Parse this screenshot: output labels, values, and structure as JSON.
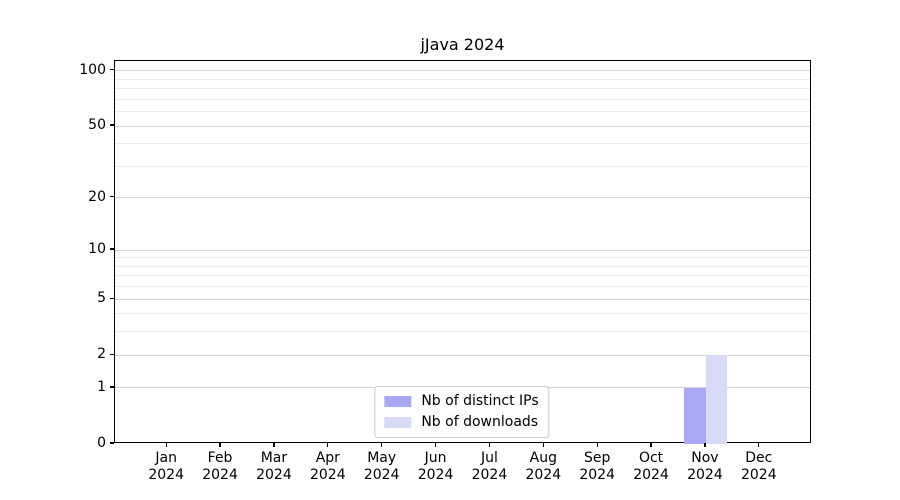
{
  "chart_data": {
    "type": "bar",
    "title": "jJava 2024",
    "categories": [
      "Jan 2024",
      "Feb 2024",
      "Mar 2024",
      "Apr 2024",
      "May 2024",
      "Jun 2024",
      "Jul 2024",
      "Aug 2024",
      "Sep 2024",
      "Oct 2024",
      "Nov 2024",
      "Dec 2024"
    ],
    "series": [
      {
        "name": "Nb of distinct IPs",
        "color": "#a8a8f4",
        "values": [
          0,
          0,
          0,
          0,
          0,
          0,
          0,
          0,
          0,
          0,
          1,
          0
        ]
      },
      {
        "name": "Nb of downloads",
        "color": "#d9d9f8",
        "values": [
          0,
          0,
          0,
          0,
          0,
          0,
          0,
          0,
          0,
          0,
          2,
          0
        ]
      }
    ],
    "yscale": "log1p",
    "ylim": [
      0,
      113
    ],
    "yticks": [
      0,
      1,
      2,
      5,
      10,
      20,
      50,
      100
    ],
    "yticks_minor": [
      3,
      4,
      6,
      7,
      8,
      9,
      30,
      40,
      60,
      70,
      80,
      90
    ],
    "xlabel": "",
    "ylabel": "",
    "grid": "horizontal",
    "legend_position": "lower center",
    "colors": {
      "grid_major": "#d4d4d4",
      "grid_minor": "#ececec",
      "spine": "#000000",
      "legend_border": "#cccccc"
    }
  }
}
